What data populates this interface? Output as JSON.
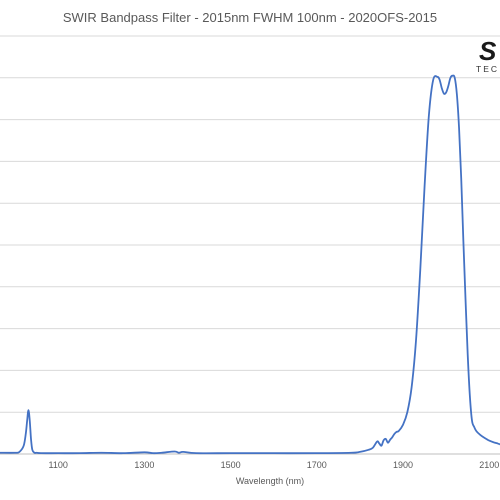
{
  "chart_data": {
    "type": "line",
    "title": "SWIR Bandpass Filter - 2015nm FWHM 100nm - 2020OFS-2015",
    "xlabel": "Wavelength (nm)",
    "ylabel": "",
    "xlim": [
      965,
      2125
    ],
    "ylim": [
      0,
      100
    ],
    "x_ticks": [
      1100,
      1300,
      1500,
      1700,
      1900,
      2100
    ],
    "y_ticks": [
      0,
      10,
      20,
      30,
      40,
      50,
      60,
      70,
      80,
      90,
      100
    ],
    "grid": true,
    "line_color": "#4472C4",
    "series": [
      {
        "x": [
          965,
          1000,
          1010,
          1020,
          1025,
          1028,
          1031,
          1034,
          1037,
          1040,
          1045,
          1050,
          1060,
          1100,
          1150,
          1200,
          1250,
          1300,
          1320,
          1340,
          1370,
          1380,
          1390,
          1420,
          1500,
          1600,
          1700,
          1780,
          1800,
          1820,
          1830,
          1840,
          1845,
          1850,
          1855,
          1860,
          1865,
          1870,
          1875,
          1880,
          1885,
          1890,
          1900,
          1910,
          1920,
          1930,
          1940,
          1950,
          1960,
          1970,
          1980,
          1985,
          1990,
          1995,
          2000,
          2005,
          2010,
          2015,
          2020,
          2025,
          2030,
          2035,
          2040,
          2045,
          2050,
          2055,
          2060,
          2065,
          2070,
          2080,
          2090,
          2100,
          2110,
          2120,
          2125
        ],
        "y": [
          0.3,
          0.3,
          0.5,
          2,
          5,
          8,
          10.5,
          8,
          3.5,
          1,
          0.3,
          0.3,
          0.2,
          0.2,
          0.2,
          0.3,
          0.2,
          0.4,
          0.2,
          0.3,
          0.6,
          0.3,
          0.5,
          0.2,
          0.2,
          0.2,
          0.2,
          0.3,
          0.5,
          1,
          1.5,
          3,
          2.5,
          2,
          3.3,
          3.6,
          2.7,
          3.4,
          4,
          4.8,
          5.3,
          5.5,
          7,
          10,
          16,
          27,
          44,
          64,
          81,
          89.5,
          90.2,
          89.5,
          87.5,
          86.2,
          86.5,
          88,
          90,
          90.5,
          90,
          86,
          78,
          66,
          51,
          37,
          24,
          14,
          8,
          6.5,
          5.5,
          4.5,
          3.8,
          3.2,
          2.8,
          2.5,
          2.3
        ]
      }
    ]
  },
  "logo": {
    "mark": "S",
    "sub": "TEC"
  }
}
